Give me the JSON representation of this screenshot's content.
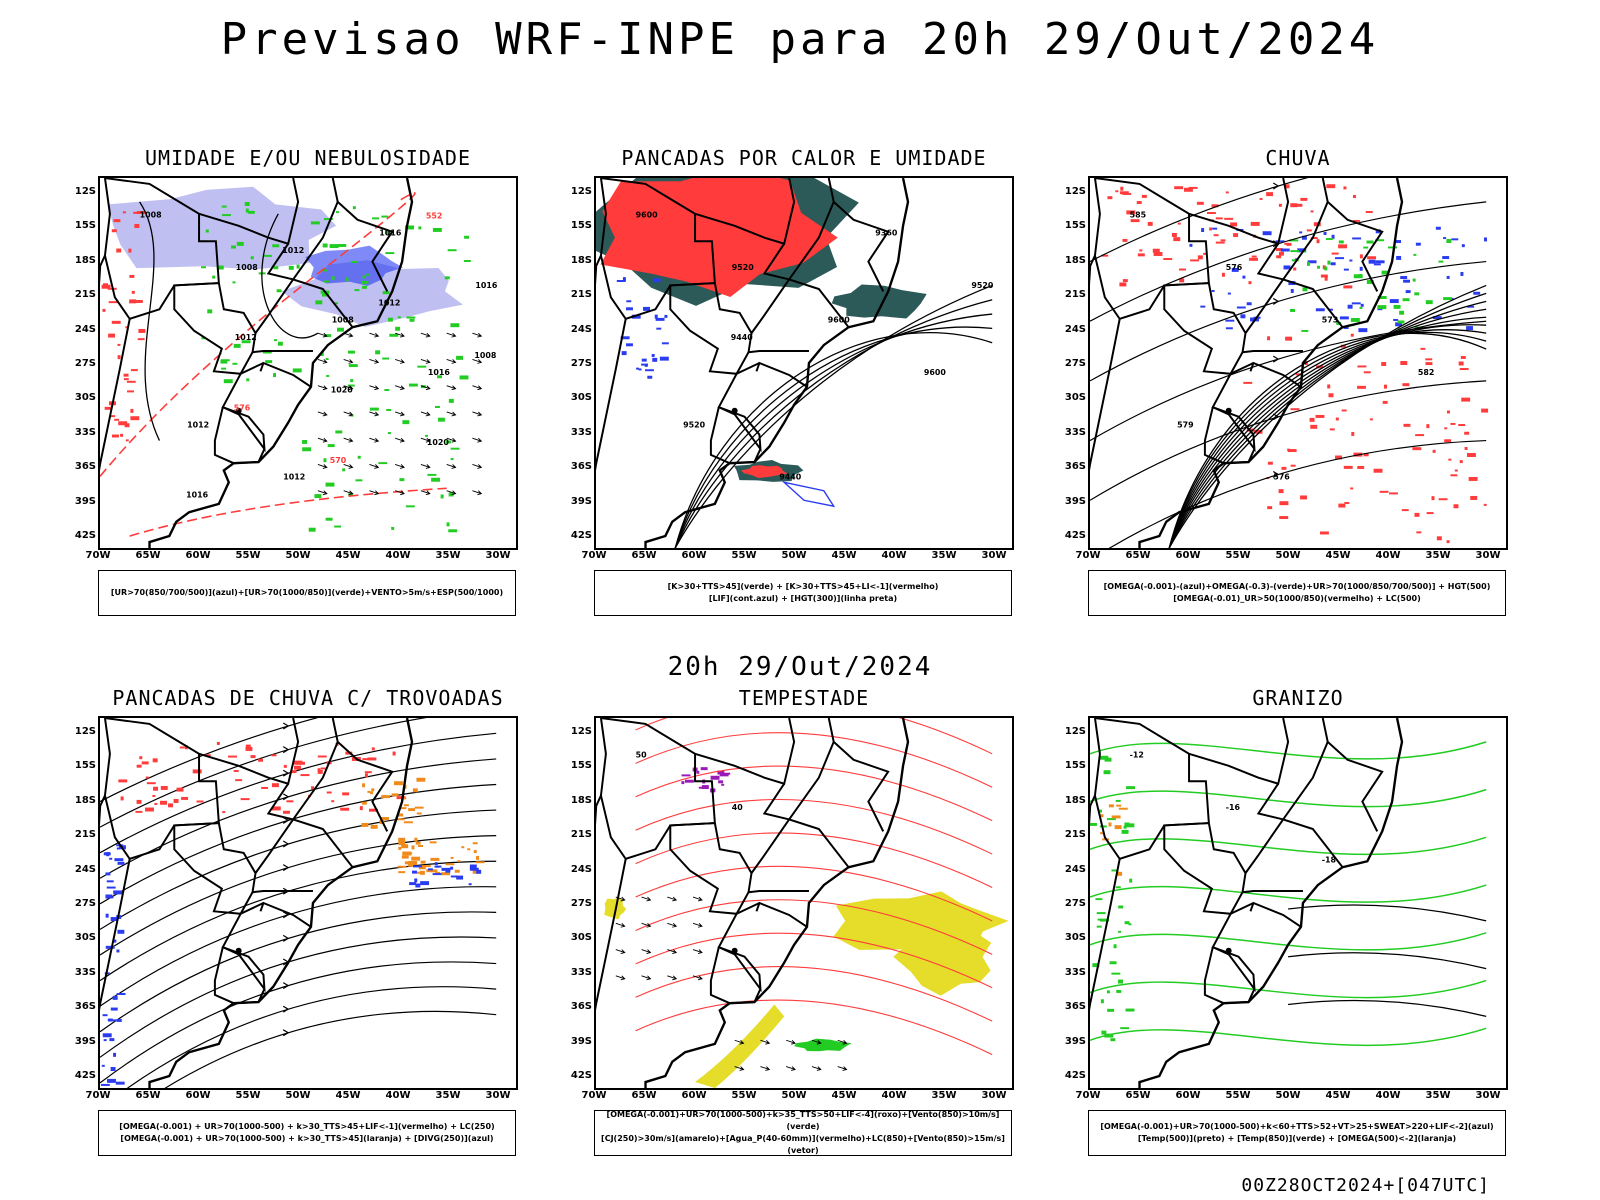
{
  "page_title": "Previsao WRF-INPE  para 20h 29/Out/2024",
  "mid_title": "20h 29/Out/2024",
  "footer": "00Z28OCT2024+[047UTC]",
  "lat_ticks": [
    "12S",
    "15S",
    "18S",
    "21S",
    "24S",
    "27S",
    "30S",
    "33S",
    "36S",
    "39S",
    "42S"
  ],
  "lon_ticks": [
    "70W",
    "65W",
    "60W",
    "55W",
    "50W",
    "45W",
    "40W",
    "35W",
    "30W"
  ],
  "colors": {
    "blue_fill": "#b8b8f0",
    "blue": "#2a3cf0",
    "green": "#22cc22",
    "red": "#ff3b3b",
    "dark_teal": "#2c5a58",
    "orange": "#f08a1a",
    "yellow": "#e6dc2a",
    "purple": "#9a1ab8"
  },
  "panels": [
    {
      "title": "UMIDADE E/OU NEBULOSIDADE",
      "legend": [
        "[UR>70(850/700/500)](azul)+[UR>70(1000/850)](verde)+VENTO>5m/s+ESP(500/1000)"
      ],
      "contour_labels": [
        "1008",
        "1008",
        "1008",
        "1016",
        "1012",
        "1012",
        "1016",
        "1016",
        "1012",
        "1020",
        "1020",
        "1016",
        "1012",
        "1012",
        "1008",
        "576",
        "570",
        "552"
      ]
    },
    {
      "title": "PANCADAS POR CALOR E UMIDADE",
      "legend": [
        "[K>30+TTS>45](verde) + [K>30+TTS>45+LI<-1](vermelho)",
        "[LIF](cont.azul) + [HGT(300)](linha preta)"
      ],
      "contour_labels": [
        "9600",
        "9520",
        "9600",
        "9600",
        "9520",
        "9440",
        "9360",
        "9520",
        "9440"
      ]
    },
    {
      "title": "CHUVA",
      "legend": [
        "[OMEGA(-0.001)-(azul)+OMEGA(-0.3)-(verde)+UR>70(1000/850/700/500)] + HGT(500)",
        "[OMEGA(-0.01)_UR>50(1000/850)(vermelho) + LC(500)"
      ],
      "contour_labels": [
        "585",
        "576",
        "573",
        "582",
        "579",
        "576"
      ]
    },
    {
      "title": "PANCADAS DE CHUVA C/ TROVOADAS",
      "legend": [
        "[OMEGA(-0.001) + UR>70(1000-500) + k>30_TTS>45+LIF<-1](vermelho) + LC(250)",
        "[OMEGA(-0.001) + UR>70(1000-500) + k>30_TTS>45](laranja) + [DIVG(250)](azul)"
      ],
      "contour_labels": []
    },
    {
      "title": "TEMPESTADE",
      "legend": [
        "[OMEGA(-0.001)+UR>70(1000-500)+k>35_TTS>50+LIF<-4](roxo)+[Vento(850)>10m/s](verde)",
        "[CJ(250)>30m/s](amarelo)+[Agua_P(40-60mm)](vermelho)+LC(850)+[Vento(850)>15m/s](vetor)"
      ],
      "contour_labels": [
        "50",
        "40"
      ]
    },
    {
      "title": "GRANIZO",
      "legend": [
        "[OMEGA(-0.001)+UR>70(1000-500)+k<60+TTS>52+VT>25+SWEAT>220+LIF<-2](azul)",
        "[Temp(500)](preto) + [Temp(850)](verde) + [OMEGA(500)<-2](laranja)"
      ],
      "contour_labels": [
        "-12",
        "-16",
        "-18"
      ]
    }
  ]
}
